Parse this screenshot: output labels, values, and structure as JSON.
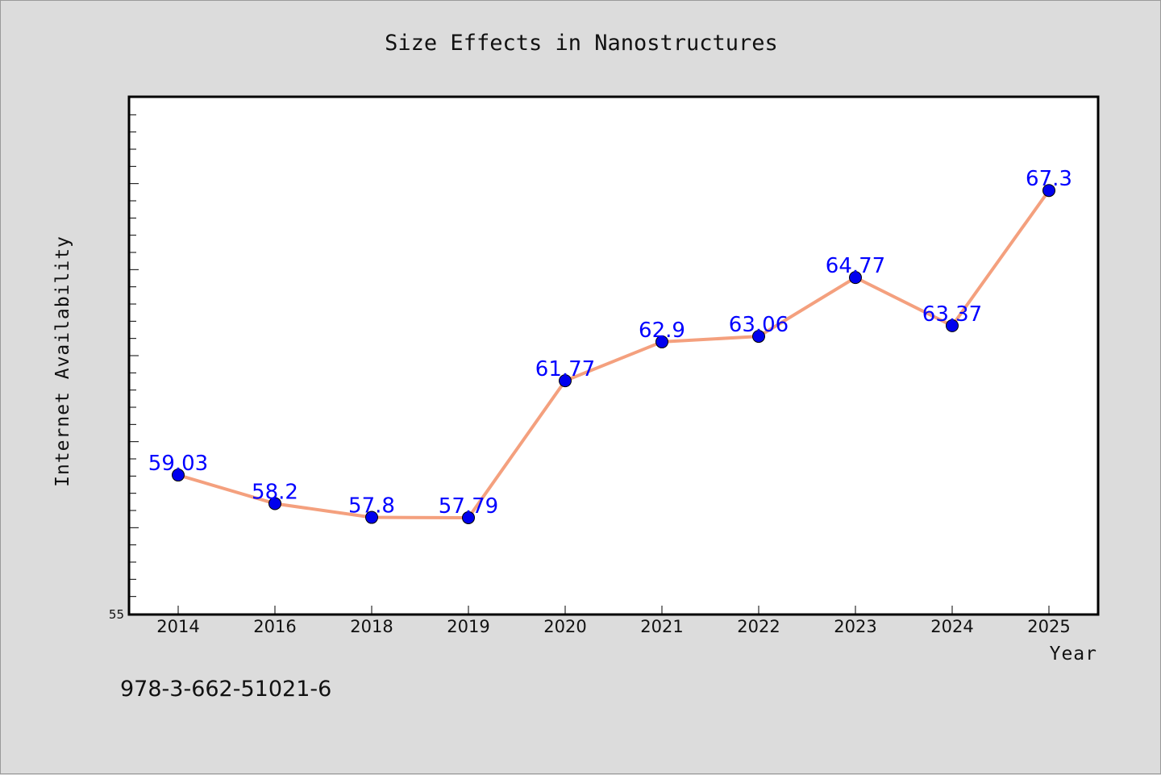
{
  "chart_data": {
    "type": "line",
    "title": "Size Effects in Nanostructures",
    "xlabel": "Year",
    "ylabel": "Internet Availability",
    "categories": [
      "2014",
      "2016",
      "2018",
      "2019",
      "2020",
      "2021",
      "2022",
      "2023",
      "2024",
      "2025"
    ],
    "series": [
      {
        "values": [
          59.03,
          58.2,
          57.8,
          57.79,
          61.77,
          62.9,
          63.06,
          64.77,
          63.37,
          67.3
        ],
        "labels": [
          "59.03",
          "58.2",
          "57.8",
          "57.79",
          "61.77",
          "62.9",
          "63.06",
          "64.77",
          "63.37",
          "67.3"
        ],
        "line_color": "#f4a07e",
        "marker_color": "#0000ee"
      }
    ],
    "ylim": [
      55,
      70
    ],
    "ytick_labels": [
      "55"
    ],
    "grid": false,
    "legend": "none"
  },
  "footer": {
    "isbn": "978-3-662-51021-6"
  },
  "colors": {
    "background": "#dcdcdc",
    "plot_background": "#ffffff",
    "label_color": "#0000ff"
  }
}
